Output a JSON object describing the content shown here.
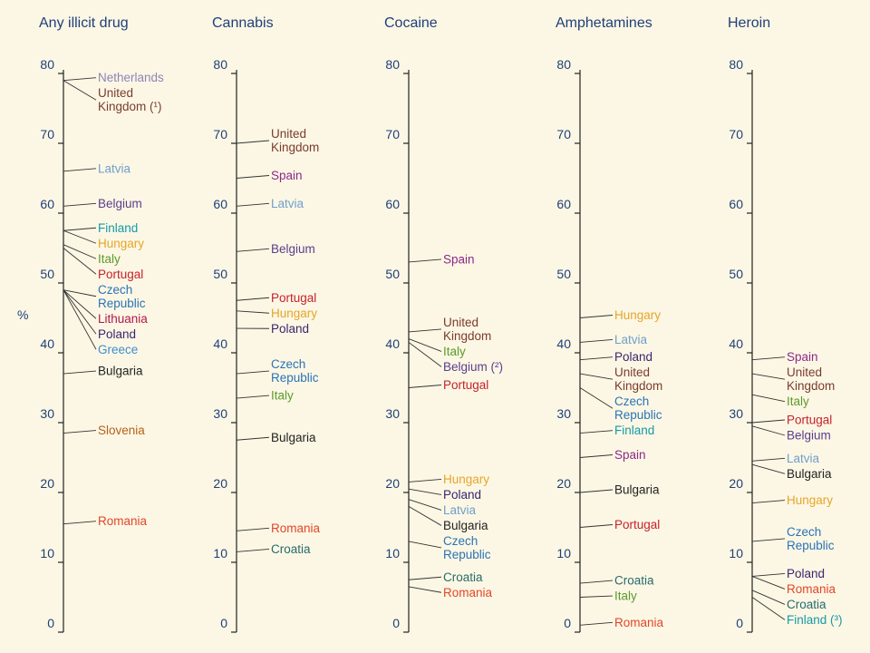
{
  "unit_label": "%",
  "chart_data": {
    "type": "dot-scale",
    "y_unit": "%",
    "ylim": [
      0,
      80
    ],
    "yticks": [
      0,
      10,
      20,
      30,
      40,
      50,
      60,
      70,
      80
    ],
    "grid": false,
    "panels": [
      {
        "title": "Any illicit drug",
        "points": [
          {
            "label": [
              "Netherlands"
            ],
            "value": 79,
            "color": "#8e84b8"
          },
          {
            "label": [
              "United",
              "Kingdom (¹)"
            ],
            "value": 79,
            "color": "#7a3b2e"
          },
          {
            "label": [
              "Latvia"
            ],
            "value": 66,
            "color": "#6f9fcc"
          },
          {
            "label": [
              "Belgium"
            ],
            "value": 61,
            "color": "#5a3e8c"
          },
          {
            "label": [
              "Finland"
            ],
            "value": 57.5,
            "color": "#159aa8"
          },
          {
            "label": [
              "Hungary"
            ],
            "value": 57.5,
            "color": "#e6a52a"
          },
          {
            "label": [
              "Italy"
            ],
            "value": 55.5,
            "color": "#5c9a2c"
          },
          {
            "label": [
              "Portugal"
            ],
            "value": 55,
            "color": "#c8202d"
          },
          {
            "label": [
              "Czech",
              "Republic"
            ],
            "value": 49,
            "color": "#2a73b8"
          },
          {
            "label": [
              "Lithuania"
            ],
            "value": 49,
            "color": "#b0164e"
          },
          {
            "label": [
              "Poland"
            ],
            "value": 49,
            "color": "#3a2570"
          },
          {
            "label": [
              "Greece"
            ],
            "value": 49,
            "color": "#3c8ed0"
          },
          {
            "label": [
              "Bulgaria"
            ],
            "value": 37,
            "color": "#222222"
          },
          {
            "label": [
              "Slovenia"
            ],
            "value": 28.5,
            "color": "#b4621a"
          },
          {
            "label": [
              "Romania"
            ],
            "value": 15.5,
            "color": "#e0462a"
          }
        ]
      },
      {
        "title": "Cannabis",
        "points": [
          {
            "label": [
              "United",
              "Kingdom"
            ],
            "value": 70,
            "color": "#7a3b2e"
          },
          {
            "label": [
              "Spain"
            ],
            "value": 65,
            "color": "#8b2a8a"
          },
          {
            "label": [
              "Latvia"
            ],
            "value": 61,
            "color": "#6f9fcc"
          },
          {
            "label": [
              "Belgium"
            ],
            "value": 54.5,
            "color": "#5a3e8c"
          },
          {
            "label": [
              "Portugal"
            ],
            "value": 47.5,
            "color": "#c8202d"
          },
          {
            "label": [
              "Hungary"
            ],
            "value": 46,
            "color": "#e6a52a"
          },
          {
            "label": [
              "Poland"
            ],
            "value": 43.5,
            "color": "#3a2570"
          },
          {
            "label": [
              "Czech",
              "Republic"
            ],
            "value": 37,
            "color": "#2a73b8"
          },
          {
            "label": [
              "Italy"
            ],
            "value": 33.5,
            "color": "#5c9a2c"
          },
          {
            "label": [
              "Bulgaria"
            ],
            "value": 27.5,
            "color": "#222222"
          },
          {
            "label": [
              "Romania"
            ],
            "value": 14.5,
            "color": "#e0462a"
          },
          {
            "label": [
              "Croatia"
            ],
            "value": 11.5,
            "color": "#256b6e"
          }
        ]
      },
      {
        "title": "Cocaine",
        "points": [
          {
            "label": [
              "Spain"
            ],
            "value": 53,
            "color": "#8b2a8a"
          },
          {
            "label": [
              "United",
              "Kingdom"
            ],
            "value": 43,
            "color": "#7a3b2e"
          },
          {
            "label": [
              "Italy"
            ],
            "value": 42,
            "color": "#5c9a2c"
          },
          {
            "label": [
              "Belgium (²)"
            ],
            "value": 41.5,
            "color": "#5a3e8c"
          },
          {
            "label": [
              "Portugal"
            ],
            "value": 35,
            "color": "#c8202d"
          },
          {
            "label": [
              "Hungary"
            ],
            "value": 21.5,
            "color": "#e6a52a"
          },
          {
            "label": [
              "Poland"
            ],
            "value": 20.5,
            "color": "#3a2570"
          },
          {
            "label": [
              "Latvia"
            ],
            "value": 19,
            "color": "#6f9fcc"
          },
          {
            "label": [
              "Bulgaria"
            ],
            "value": 18,
            "color": "#222222"
          },
          {
            "label": [
              "Czech",
              "Republic"
            ],
            "value": 13,
            "color": "#2a73b8"
          },
          {
            "label": [
              "Croatia"
            ],
            "value": 7.5,
            "color": "#256b6e"
          },
          {
            "label": [
              "Romania"
            ],
            "value": 6.5,
            "color": "#e0462a"
          }
        ]
      },
      {
        "title": "Amphetamines",
        "points": [
          {
            "label": [
              "Hungary"
            ],
            "value": 45,
            "color": "#e6a52a"
          },
          {
            "label": [
              "Latvia"
            ],
            "value": 41.5,
            "color": "#6f9fcc"
          },
          {
            "label": [
              "Poland"
            ],
            "value": 39,
            "color": "#3a2570"
          },
          {
            "label": [
              "United",
              "Kingdom"
            ],
            "value": 37,
            "color": "#7a3b2e"
          },
          {
            "label": [
              "Czech",
              "Republic"
            ],
            "value": 35,
            "color": "#2a73b8"
          },
          {
            "label": [
              "Finland"
            ],
            "value": 28.5,
            "color": "#159aa8"
          },
          {
            "label": [
              "Spain"
            ],
            "value": 25,
            "color": "#8b2a8a"
          },
          {
            "label": [
              "Bulgaria"
            ],
            "value": 20,
            "color": "#222222"
          },
          {
            "label": [
              "Portugal"
            ],
            "value": 15,
            "color": "#c8202d"
          },
          {
            "label": [
              "Croatia"
            ],
            "value": 7,
            "color": "#256b6e"
          },
          {
            "label": [
              "Italy"
            ],
            "value": 5,
            "color": "#5c9a2c"
          },
          {
            "label": [
              "Romania"
            ],
            "value": 1,
            "color": "#e0462a"
          }
        ]
      },
      {
        "title": "Heroin",
        "points": [
          {
            "label": [
              "Spain"
            ],
            "value": 39,
            "color": "#8b2a8a"
          },
          {
            "label": [
              "United",
              "Kingdom"
            ],
            "value": 37,
            "color": "#7a3b2e"
          },
          {
            "label": [
              "Italy"
            ],
            "value": 34,
            "color": "#5c9a2c"
          },
          {
            "label": [
              "Portugal"
            ],
            "value": 30,
            "color": "#c8202d"
          },
          {
            "label": [
              "Belgium"
            ],
            "value": 29.5,
            "color": "#5a3e8c"
          },
          {
            "label": [
              "Latvia"
            ],
            "value": 24.5,
            "color": "#6f9fcc"
          },
          {
            "label": [
              "Bulgaria"
            ],
            "value": 24,
            "color": "#222222"
          },
          {
            "label": [
              "Hungary"
            ],
            "value": 18.5,
            "color": "#e6a52a"
          },
          {
            "label": [
              "Czech",
              "Republic"
            ],
            "value": 13,
            "color": "#2a73b8"
          },
          {
            "label": [
              "Poland"
            ],
            "value": 8,
            "color": "#3a2570"
          },
          {
            "label": [
              "Romania"
            ],
            "value": 8,
            "color": "#e0462a"
          },
          {
            "label": [
              "Croatia"
            ],
            "value": 6,
            "color": "#256b6e"
          },
          {
            "label": [
              "Finland (³)"
            ],
            "value": 5,
            "color": "#159aa8"
          }
        ]
      }
    ]
  }
}
